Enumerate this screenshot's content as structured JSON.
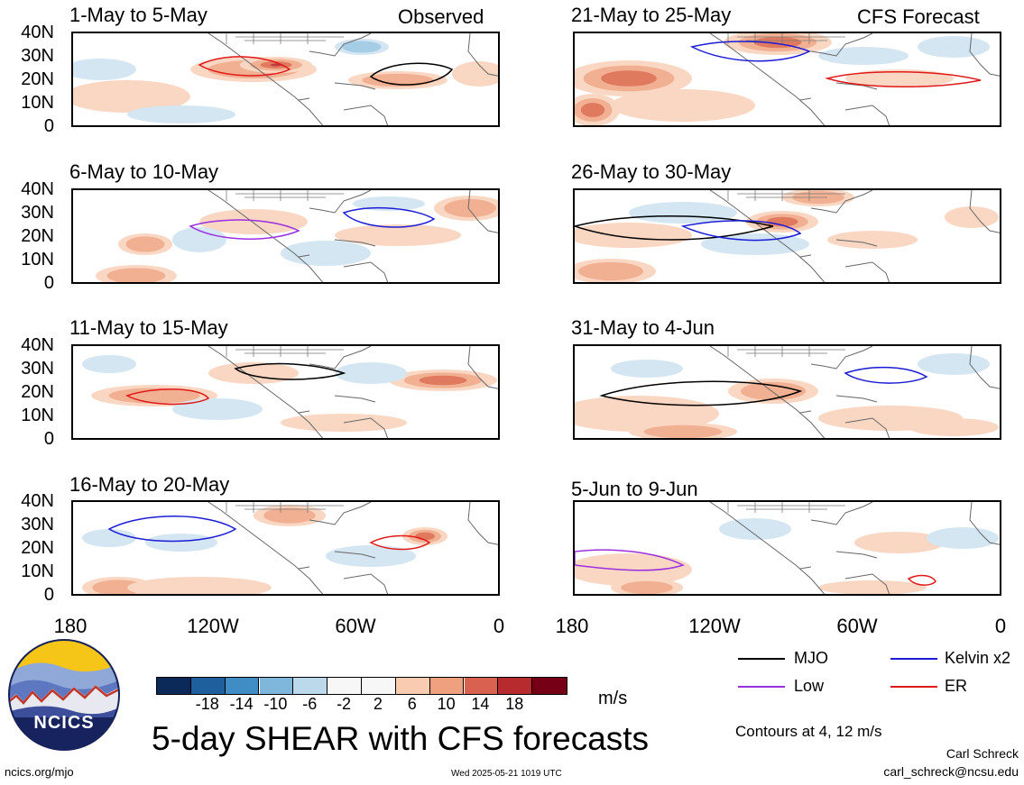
{
  "panels": [
    {
      "title": "1-May to 5-May",
      "tag": "Observed"
    },
    {
      "title": "6-May to 10-May",
      "tag": ""
    },
    {
      "title": "11-May to 15-May",
      "tag": ""
    },
    {
      "title": "16-May to 20-May",
      "tag": ""
    },
    {
      "title": "21-May to 25-May",
      "tag": "CFS Forecast"
    },
    {
      "title": "26-May to 30-May",
      "tag": ""
    },
    {
      "title": "31-May to 4-Jun",
      "tag": ""
    },
    {
      "title": "5-Jun to 9-Jun",
      "tag": ""
    }
  ],
  "y_ticks": [
    "40N",
    "30N",
    "20N",
    "10N",
    "0"
  ],
  "x_ticks": [
    "180",
    "120W",
    "60W",
    "0"
  ],
  "colorbar": {
    "colors": [
      "#0b2a5a",
      "#1f5f9e",
      "#3f8dc4",
      "#7fb6dc",
      "#bcd9ec",
      "#f7f7f7",
      "#f7f7f7",
      "#f9cbb0",
      "#efa07f",
      "#d8614f",
      "#b72a2e",
      "#760016"
    ],
    "ticks": [
      "-18",
      "-14",
      "-10",
      "-6",
      "-2",
      "2",
      "6",
      "10",
      "14",
      "18"
    ],
    "unit": "m/s"
  },
  "legend": [
    {
      "label": "MJO",
      "color": "#000000"
    },
    {
      "label": "Kelvin x2",
      "color": "#1c1cd6"
    },
    {
      "label": "Low",
      "color": "#9b30e0"
    },
    {
      "label": "ER",
      "color": "#e01a1a"
    }
  ],
  "main_title": "5-day SHEAR with CFS forecasts",
  "contours_note": "Contours at 4, 12 m/s",
  "logo_text": "NCICS",
  "footer": {
    "left": "ncics.org/mjo",
    "center": "Wed 2025-05-21 1019 UTC",
    "author": "Carl Schreck",
    "email": "carl_schreck@ncsu.edu"
  }
}
